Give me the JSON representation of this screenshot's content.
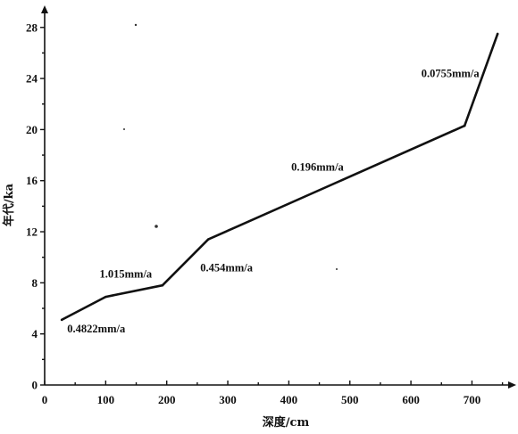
{
  "chart_data": {
    "type": "line",
    "xlabel": "深度/cm",
    "ylabel": "年代/ka",
    "xlim": [
      0,
      750
    ],
    "ylim": [
      0,
      29
    ],
    "x_ticks": [
      0,
      100,
      200,
      300,
      400,
      500,
      600,
      700
    ],
    "y_ticks": [
      0,
      4,
      8,
      12,
      16,
      20,
      24,
      28
    ],
    "grid": false,
    "series": [
      {
        "points": [
          {
            "x": 28,
            "y": 5.1
          },
          {
            "x": 100,
            "y": 6.9
          },
          {
            "x": 193,
            "y": 7.8
          },
          {
            "x": 268,
            "y": 11.4
          },
          {
            "x": 688,
            "y": 20.3
          },
          {
            "x": 742,
            "y": 27.5
          }
        ]
      }
    ],
    "annotations": [
      {
        "text": "0.4822mm/a",
        "x": 37,
        "y": 4.1
      },
      {
        "text": "1.015mm/a",
        "x": 90,
        "y": 8.4
      },
      {
        "text": "0.454mm/a",
        "x": 255,
        "y": 8.9
      },
      {
        "text": "0.196mm/a",
        "x": 404,
        "y": 16.8
      },
      {
        "text": "0.0755mm/a",
        "x": 617,
        "y": 24.1
      }
    ]
  }
}
